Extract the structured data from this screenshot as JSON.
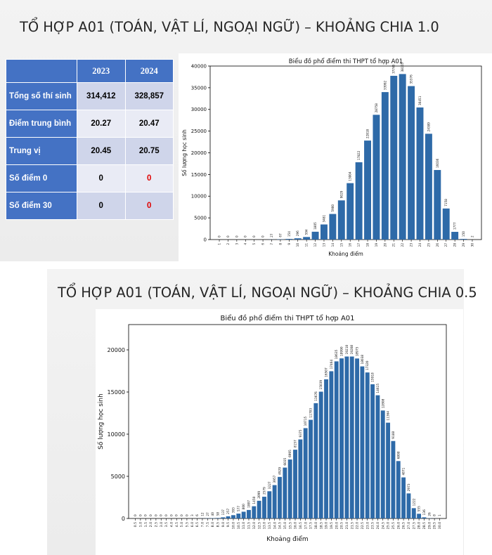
{
  "slide1": {
    "title": "TỔ HỢP A01 (TOÁN, VẬT LÍ, NGOẠI NGỮ) – KHOẢNG CHIA 1.0",
    "table": {
      "headers": [
        "",
        "2023",
        "2024"
      ],
      "rows": [
        {
          "label": "Tổng số thí sinh",
          "v2023": "314,412",
          "v2024": "328,857"
        },
        {
          "label": "Điểm trung bình",
          "v2023": "20.27",
          "v2024": "20.47"
        },
        {
          "label": "Trung vị",
          "v2023": "20.45",
          "v2024": "20.75"
        },
        {
          "label": "Số điểm 0",
          "v2023": "0",
          "v2024": "0"
        },
        {
          "label": "Số điểm 30",
          "v2023": "0",
          "v2024": "0"
        }
      ]
    }
  },
  "slide2": {
    "title": "TỔ HỢP A01 (TOÁN, VẬT LÍ, NGOẠI NGỮ) – KHOẢNG CHIA 0.5"
  },
  "colors": {
    "bar": "#2e6aa8",
    "header": "#4472c4",
    "highlight_red": "#e00000"
  },
  "chart_data": [
    {
      "type": "bar",
      "title": "Biểu đồ phổ điểm thi THPT tổ hợp A01",
      "xlabel": "Khoảng điểm",
      "ylabel": "Số lượng học sinh",
      "ylim": [
        0,
        40000
      ],
      "yticks": [
        0,
        5000,
        10000,
        15000,
        20000,
        25000,
        30000,
        35000,
        40000
      ],
      "categories": [
        "1",
        "2",
        "3",
        "4",
        "5",
        "6",
        "7",
        "8",
        "9",
        "10",
        "11",
        "12",
        "13",
        "14",
        "15",
        "16",
        "17",
        "18",
        "19",
        "20",
        "21",
        "22",
        "23",
        "24",
        "25",
        "26",
        "27",
        "28",
        "29",
        "30"
      ],
      "values": [
        0,
        0,
        0,
        0,
        0,
        0,
        27,
        67,
        154,
        296,
        594,
        1805,
        3481,
        5900,
        9029,
        13004,
        17822,
        22818,
        28758,
        33992,
        37745,
        38155,
        35376,
        30451,
        24389,
        16036,
        7158,
        1777,
        150,
        2
      ],
      "grid": false
    },
    {
      "type": "bar",
      "title": "Biểu đồ phổ điểm thi THPT tổ hợp A01",
      "xlabel": "Khoảng điểm",
      "ylabel": "Số lượng học sinh",
      "ylim": [
        0,
        23000
      ],
      "yticks": [
        0,
        5000,
        10000,
        15000,
        20000
      ],
      "categories": [
        "0.5",
        "1.0",
        "1.5",
        "2.0",
        "2.5",
        "3.0",
        "3.5",
        "4.0",
        "4.5",
        "5.0",
        "5.5",
        "6.0",
        "6.5",
        "7.0",
        "7.5",
        "8.0",
        "8.5",
        "9.0",
        "9.5",
        "10.0",
        "10.5",
        "11.0",
        "11.5",
        "12.0",
        "12.5",
        "13.0",
        "13.5",
        "14.0",
        "14.5",
        "15.0",
        "15.5",
        "16.0",
        "16.5",
        "17.0",
        "17.5",
        "18.0",
        "18.5",
        "19.0",
        "19.5",
        "20.0",
        "20.5",
        "21.0",
        "21.5",
        "22.0",
        "22.5",
        "23.0",
        "23.5",
        "24.0",
        "24.5",
        "25.0",
        "25.5",
        "26.0",
        "26.5",
        "27.0",
        "27.5",
        "28.0",
        "28.5",
        "29.0",
        "29.5",
        "30.0"
      ],
      "values": [
        0,
        0,
        0,
        0,
        0,
        0,
        0,
        0,
        0,
        0,
        0,
        3,
        6,
        12,
        27,
        40,
        58,
        137,
        257,
        393,
        577,
        800,
        1007,
        1450,
        2099,
        2579,
        3227,
        3957,
        4929,
        6035,
        6995,
        8157,
        9375,
        10715,
        11703,
        13676,
        15039,
        16507,
        17464,
        18635,
        18990,
        19210,
        19208,
        18975,
        18038,
        17320,
        15918,
        14615,
        12808,
        11364,
        9188,
        6808,
        4871,
        2973,
        1222,
        555,
        136,
        26,
        8,
        1
      ],
      "grid": false
    }
  ]
}
